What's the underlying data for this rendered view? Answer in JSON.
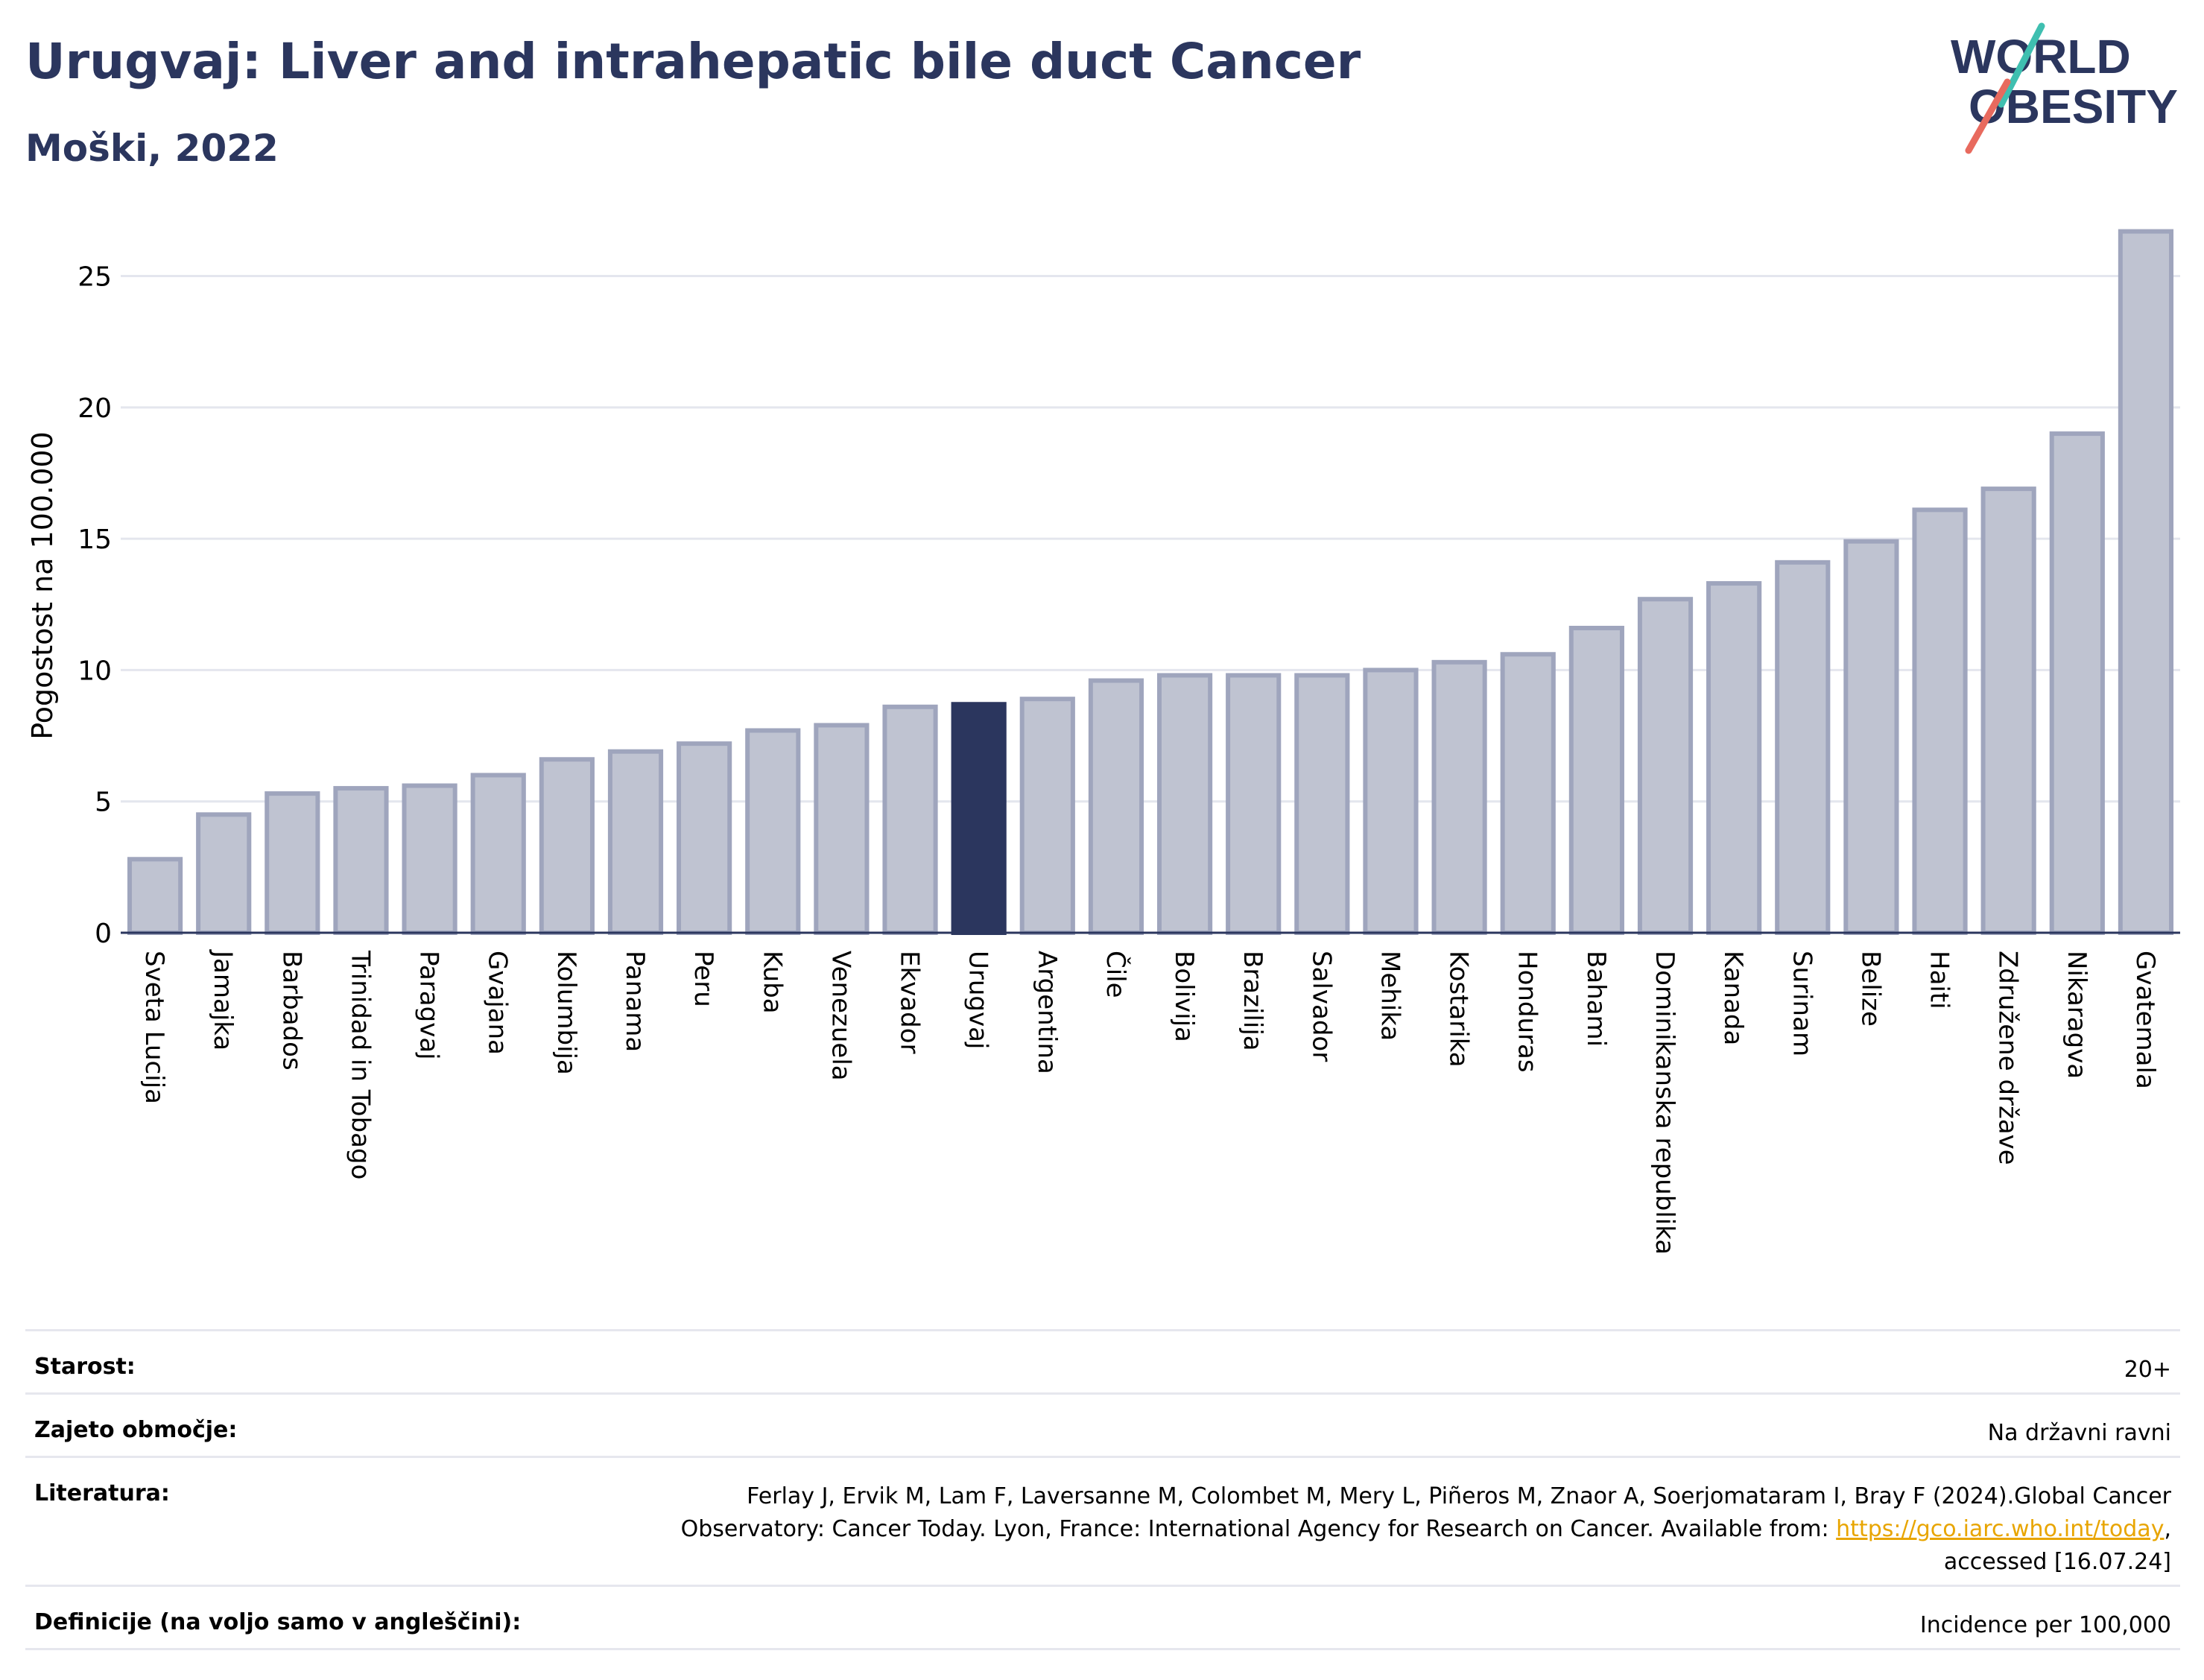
{
  "title": "Urugvaj: Liver and intrahepatic bile duct Cancer",
  "subtitle": "Moški, 2022",
  "logo": {
    "line1": "WORLD",
    "line2": "OBESITY"
  },
  "colors": {
    "highlight": "#2b365e",
    "bar": "#bfc3d1",
    "bar_edge": "#9fa5bd",
    "title": "#2b365e",
    "link": "#e8a500"
  },
  "chart_data": {
    "type": "bar",
    "ylabel": "Pogostost na 100.000",
    "ylim": [
      0,
      27
    ],
    "yticks": [
      0,
      5,
      10,
      15,
      20,
      25
    ],
    "grid": true,
    "highlight": "Urugvaj",
    "categories": [
      "Sveta Lucija",
      "Jamajka",
      "Barbados",
      "Trinidad in Tobago",
      "Paragvaj",
      "Gvajana",
      "Kolumbija",
      "Panama",
      "Peru",
      "Kuba",
      "Venezuela",
      "Ekvador",
      "Urugvaj",
      "Argentina",
      "Čile",
      "Bolivija",
      "Brazilija",
      "Salvador",
      "Mehika",
      "Kostarika",
      "Honduras",
      "Bahami",
      "Dominikanska republika",
      "Kanada",
      "Surinam",
      "Belize",
      "Haiti",
      "Združene države",
      "Nikaragva",
      "Gvatemala"
    ],
    "values": [
      2.8,
      4.5,
      5.3,
      5.5,
      5.6,
      6.0,
      6.6,
      6.9,
      7.2,
      7.7,
      7.9,
      8.6,
      8.7,
      8.9,
      9.6,
      9.8,
      9.8,
      9.8,
      10.0,
      10.3,
      10.6,
      11.6,
      12.7,
      13.3,
      14.1,
      14.9,
      16.1,
      16.9,
      19.0,
      26.7
    ]
  },
  "meta": {
    "age_label": "Starost:",
    "age_value": "20+",
    "coverage_label": "Zajeto območje:",
    "coverage_value": "Na državni ravni",
    "ref_label": "Literatura:",
    "ref_line1": "Ferlay J, Ervik M, Lam F, Laversanne M, Colombet M, Mery L, Piñeros M, Znaor A, Soerjomataram I, Bray F (2024).Global Cancer",
    "ref_line2_pre": "Observatory: Cancer Today. Lyon, France: International Agency for Research on Cancer. Available from: ",
    "ref_link": "https://gco.iarc.who.int/today",
    "ref_line2_post": ",",
    "ref_line3": "accessed [16.07.24]",
    "def_label": "Definicije (na voljo samo v angleščini):",
    "def_value": "Incidence per 100,000"
  }
}
